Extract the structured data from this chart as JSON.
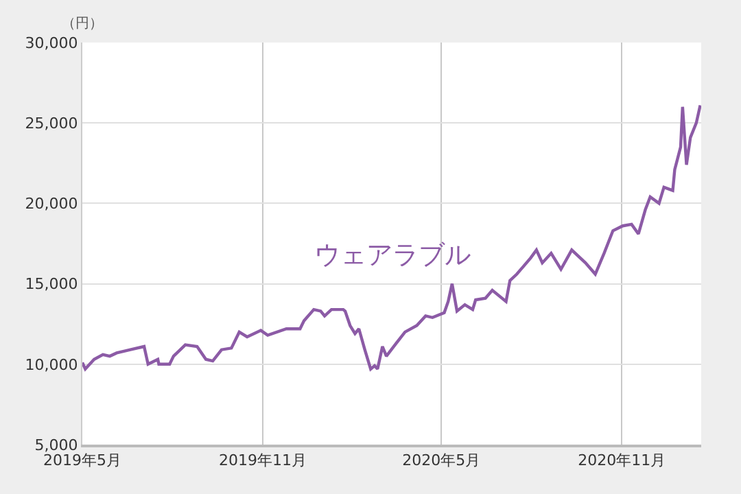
{
  "chart_data": {
    "type": "line",
    "ylabel": "（円）",
    "x": [
      "2019-05-01",
      "2019-05-04",
      "2019-05-13",
      "2019-05-22",
      "2019-05-29",
      "2019-06-05",
      "2019-06-19",
      "2019-07-03",
      "2019-07-07",
      "2019-07-17",
      "2019-07-18",
      "2019-07-29",
      "2019-08-02",
      "2019-08-14",
      "2019-08-26",
      "2019-09-04",
      "2019-09-11",
      "2019-09-20",
      "2019-09-30",
      "2019-10-08",
      "2019-10-16",
      "2019-10-30",
      "2019-11-06",
      "2019-11-25",
      "2019-12-09",
      "2019-12-13",
      "2019-12-23",
      "2019-12-30",
      "2020-01-03",
      "2020-01-10",
      "2020-01-22",
      "2020-01-24",
      "2020-01-29",
      "2020-02-03",
      "2020-02-07",
      "2020-02-13",
      "2020-02-19",
      "2020-02-23",
      "2020-02-26",
      "2020-03-02",
      "2020-03-06",
      "2020-03-16",
      "2020-03-25",
      "2020-04-06",
      "2020-04-15",
      "2020-04-22",
      "2020-05-04",
      "2020-05-08",
      "2020-05-12",
      "2020-05-17",
      "2020-05-25",
      "2020-06-02",
      "2020-06-05",
      "2020-06-15",
      "2020-06-22",
      "2020-07-06",
      "2020-07-10",
      "2020-07-17",
      "2020-07-24",
      "2020-07-31",
      "2020-08-06",
      "2020-08-12",
      "2020-08-21",
      "2020-08-31",
      "2020-09-11",
      "2020-09-25",
      "2020-10-05",
      "2020-10-14",
      "2020-10-23",
      "2020-11-02",
      "2020-11-11",
      "2020-11-18",
      "2020-11-25",
      "2020-11-30",
      "2020-12-09",
      "2020-12-14",
      "2020-12-23",
      "2020-12-25",
      "2020-12-31",
      "2021-01-02",
      "2021-01-06",
      "2021-01-10",
      "2021-01-16",
      "2021-01-20"
    ],
    "series": [
      {
        "name": "ウェアラブル",
        "color": "#8c5ba6",
        "values": [
          10100,
          9700,
          10300,
          10600,
          10500,
          10700,
          10900,
          11100,
          10000,
          10300,
          10000,
          10000,
          10500,
          11200,
          11100,
          10300,
          10200,
          10900,
          11000,
          12000,
          11700,
          12100,
          11800,
          12200,
          12200,
          12700,
          13400,
          13300,
          13000,
          13400,
          13400,
          13300,
          12400,
          11900,
          12200,
          10900,
          9700,
          9900,
          9700,
          11100,
          10500,
          11300,
          12000,
          12400,
          13000,
          12900,
          13200,
          13900,
          15000,
          13300,
          13700,
          13400,
          14000,
          14100,
          14600,
          13900,
          15200,
          15600,
          16100,
          16600,
          17100,
          16300,
          16900,
          15900,
          17100,
          16300,
          15600,
          16900,
          18300,
          18600,
          18700,
          18100,
          19600,
          20400,
          20000,
          21000,
          20800,
          22100,
          23500,
          26000,
          22400,
          24100,
          25000,
          26100
        ]
      }
    ],
    "xlim": [
      "2019-05-01",
      "2021-01-21"
    ],
    "xticks": [
      {
        "value": "2019-05-01",
        "label": "2019年5月"
      },
      {
        "value": "2019-11-01",
        "label": "2019年11月"
      },
      {
        "value": "2020-05-01",
        "label": "2020年5月"
      },
      {
        "value": "2020-11-01",
        "label": "2020年11月"
      }
    ],
    "ylim": [
      5000,
      30000
    ],
    "yticks": [
      {
        "value": 5000,
        "label": "5,000"
      },
      {
        "value": 10000,
        "label": "10,000"
      },
      {
        "value": 15000,
        "label": "15,000"
      },
      {
        "value": 20000,
        "label": "20,000"
      },
      {
        "value": 25000,
        "label": "25,000"
      },
      {
        "value": 30000,
        "label": "30,000"
      }
    ],
    "grid": true,
    "legend": false,
    "marker": "none",
    "line_style": "solid"
  }
}
